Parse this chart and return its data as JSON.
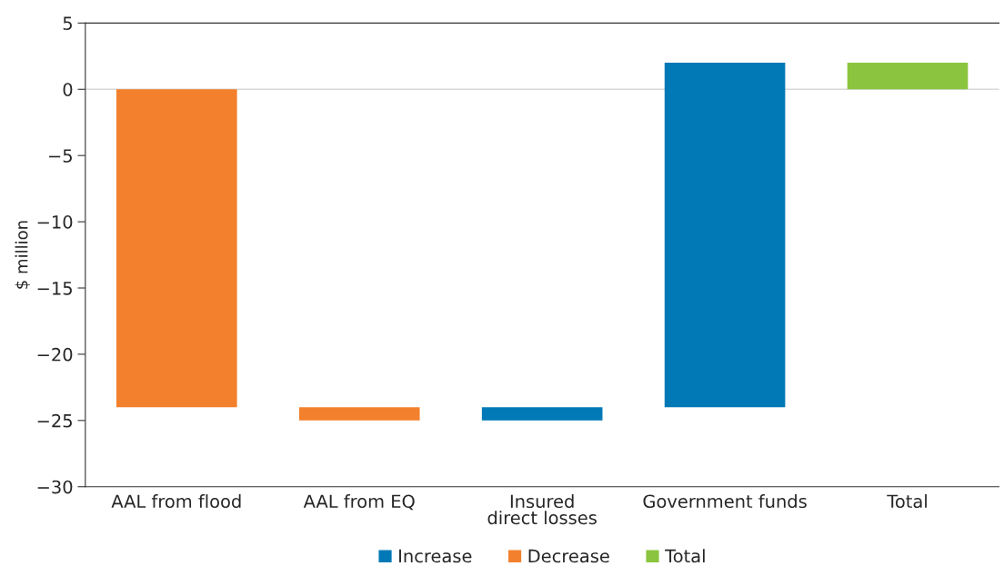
{
  "chart_data": {
    "type": "bar",
    "ylabel": "$ million",
    "categories": [
      "AAL from flood",
      "AAL from EQ",
      "Insured\ndirect losses",
      "Government funds",
      "Total"
    ],
    "series": [
      {
        "name": "Increase",
        "color": "#0079b6",
        "values": [
          null,
          null,
          1,
          26,
          null
        ],
        "base": [
          null,
          null,
          -25,
          -24,
          null
        ]
      },
      {
        "name": "Decrease",
        "color": "#f3802c",
        "values": [
          -24,
          -1,
          null,
          null,
          null
        ],
        "base": [
          0,
          -24,
          null,
          null,
          null
        ]
      },
      {
        "name": "Total",
        "color": "#8bc53f",
        "values": [
          null,
          null,
          null,
          null,
          2
        ],
        "base": [
          null,
          null,
          null,
          null,
          0
        ]
      }
    ],
    "ylim": [
      -30,
      5
    ],
    "yticks": [
      5,
      0,
      -5,
      -10,
      -15,
      -20,
      -25,
      -30
    ],
    "ref_lines": [
      {
        "axis": "y",
        "value": 0,
        "color": "#d9d9d9"
      }
    ],
    "grid": false,
    "legend": "bottom"
  }
}
